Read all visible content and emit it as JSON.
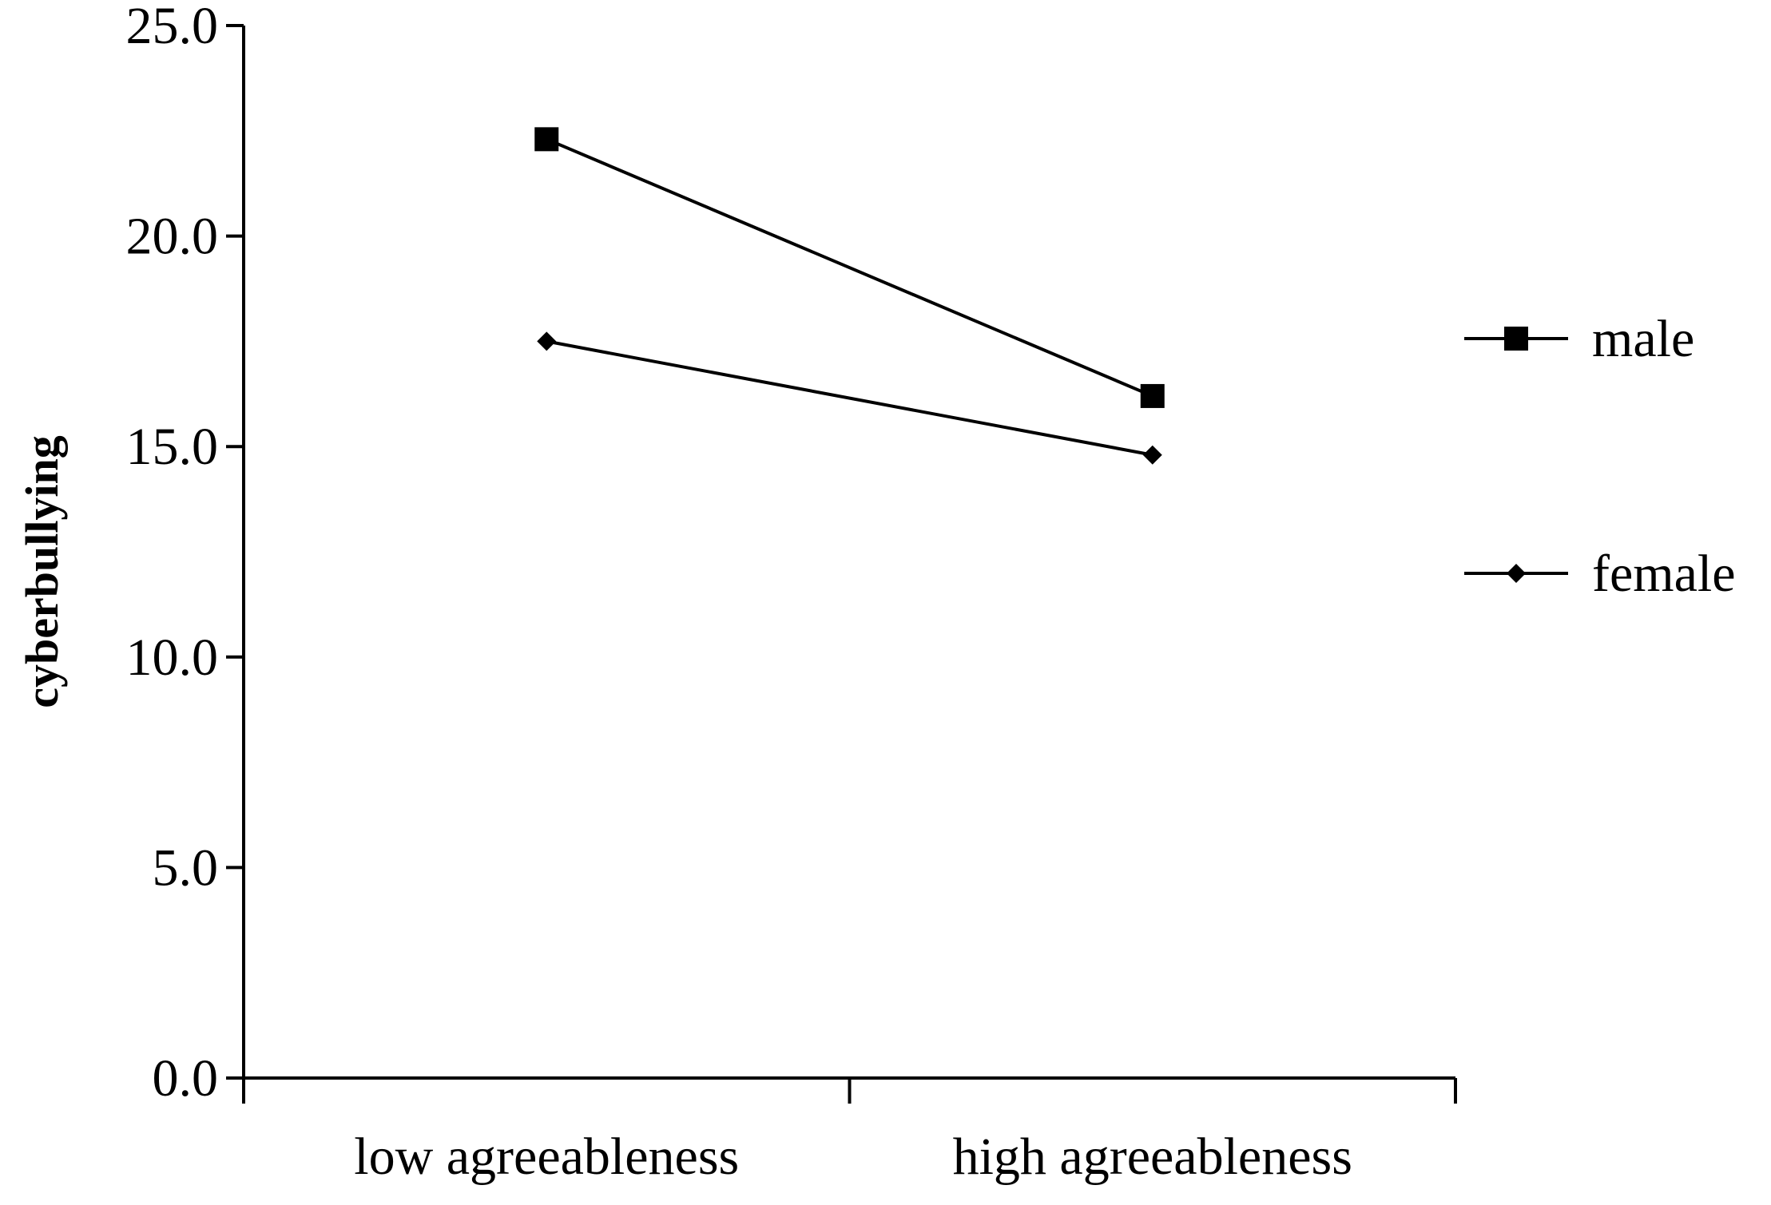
{
  "chart_data": {
    "type": "line",
    "xlabel": "",
    "ylabel": "cyberbullying",
    "categories": [
      "low agreeableness",
      "high agreeableness"
    ],
    "ylim": [
      0,
      25
    ],
    "yticks": [
      "0.0",
      "5.0",
      "10.0",
      "15.0",
      "20.0",
      "25.0"
    ],
    "grid": false,
    "legend_position": "right",
    "series": [
      {
        "name": "male",
        "marker": "square",
        "values": [
          22.3,
          16.2
        ]
      },
      {
        "name": "female",
        "marker": "diamond",
        "values": [
          17.5,
          14.8
        ]
      }
    ]
  }
}
